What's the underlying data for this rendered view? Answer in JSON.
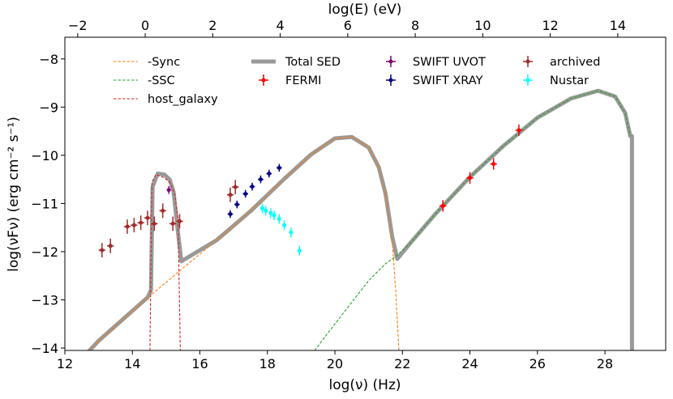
{
  "chart_data": {
    "type": "scatter",
    "title": "",
    "xlabel": "log(ν)  (Hz)",
    "ylabel": "log(νFν)  (erg cm⁻²  s⁻¹)",
    "x2label": "log(E) (eV)",
    "xlim": [
      12,
      29.8
    ],
    "ylim": [
      -14.05,
      -7.55
    ],
    "x2_offset": -14.38,
    "xticks": [
      "12",
      "14",
      "16",
      "18",
      "20",
      "22",
      "24",
      "26",
      "28"
    ],
    "yticks": [
      "−14",
      "−13",
      "−12",
      "−11",
      "−10",
      "−9",
      "−8"
    ],
    "x2ticks": [
      "−2",
      "0",
      "2",
      "4",
      "6",
      "8",
      "10",
      "12",
      "14"
    ],
    "legend_position": "top",
    "series": [
      {
        "name": "-Sync",
        "kind": "dashed-line",
        "color": "#ff7f0e",
        "x": [
          12.0,
          13.0,
          14.5,
          15.4,
          16.5,
          17.5,
          18.5,
          19.3,
          20.0,
          20.5,
          21.0,
          21.3,
          21.5,
          21.7,
          21.8,
          21.9
        ],
        "y": [
          -14.6,
          -13.85,
          -12.93,
          -12.4,
          -11.76,
          -11.16,
          -10.49,
          -9.98,
          -9.65,
          -9.62,
          -9.84,
          -10.25,
          -10.8,
          -11.8,
          -12.8,
          -14.1
        ]
      },
      {
        "name": "-SSC",
        "kind": "dashed-line",
        "color": "#2ca02c",
        "x": [
          19.4,
          20.0,
          20.5,
          21.0,
          21.5,
          21.8,
          22.2,
          23.0,
          24.0,
          25.0,
          26.0,
          27.0,
          27.8,
          28.3,
          28.6,
          28.75
        ],
        "y": [
          -14.05,
          -13.5,
          -13.05,
          -12.6,
          -12.25,
          -12.1,
          -11.85,
          -11.2,
          -10.45,
          -9.8,
          -9.22,
          -8.82,
          -8.66,
          -8.78,
          -9.12,
          -9.6
        ]
      },
      {
        "name": "host_galaxy",
        "kind": "dashed-line",
        "color": "#d62728",
        "x": [
          14.52,
          14.58,
          14.7,
          14.9,
          15.1,
          15.25,
          15.35,
          15.42
        ],
        "y": [
          -14.05,
          -10.55,
          -10.4,
          -10.45,
          -10.55,
          -10.8,
          -11.3,
          -14.05
        ]
      },
      {
        "name": "Total SED",
        "kind": "line",
        "color": "#999999",
        "x": [
          12.0,
          13.0,
          14.45,
          14.55,
          14.6,
          14.75,
          14.95,
          15.1,
          15.22,
          15.35,
          15.45,
          16.5,
          17.5,
          18.5,
          19.3,
          20.0,
          20.5,
          21.0,
          21.3,
          21.5,
          21.7,
          21.85,
          22.2,
          23.0,
          24.0,
          25.0,
          26.0,
          27.0,
          27.8,
          28.3,
          28.6,
          28.75,
          28.8,
          28.8
        ],
        "y": [
          -14.6,
          -13.85,
          -12.95,
          -12.8,
          -10.65,
          -10.38,
          -10.4,
          -10.5,
          -10.75,
          -11.6,
          -12.2,
          -11.76,
          -11.16,
          -10.49,
          -9.98,
          -9.65,
          -9.62,
          -9.84,
          -10.25,
          -10.8,
          -11.7,
          -12.15,
          -11.85,
          -11.2,
          -10.45,
          -9.8,
          -9.22,
          -8.82,
          -8.66,
          -8.78,
          -9.12,
          -9.6,
          -9.6,
          -14.05
        ]
      },
      {
        "name": "FERMI",
        "kind": "errorbar",
        "color": "#ff0000",
        "x": [
          23.2,
          24.0,
          24.7,
          25.45
        ],
        "y": [
          -11.05,
          -10.47,
          -10.18,
          -9.48
        ],
        "xerr": 0.1,
        "yerr": 0.12
      },
      {
        "name": "SWIFT UVOT",
        "kind": "errorbar",
        "color": "#800080",
        "x": [
          15.08
        ],
        "y": [
          -10.72
        ],
        "xerr": 0.03,
        "yerr": 0.08
      },
      {
        "name": "SWIFT XRAY",
        "kind": "errorbar",
        "color": "#00008b",
        "x": [
          16.9,
          17.1,
          17.35,
          17.55,
          17.8,
          18.05,
          18.35
        ],
        "y": [
          -11.22,
          -11.02,
          -10.8,
          -10.65,
          -10.5,
          -10.38,
          -10.26
        ],
        "xerr": 0.08,
        "yerr": 0.08
      },
      {
        "name": "Nustar",
        "kind": "errorbar",
        "color": "#00ffff",
        "x": [
          17.85,
          17.95,
          18.1,
          18.2,
          18.35,
          18.5,
          18.7,
          18.95
        ],
        "y": [
          -11.1,
          -11.15,
          -11.2,
          -11.25,
          -11.32,
          -11.45,
          -11.6,
          -11.98
        ],
        "xerr": 0.04,
        "yerr": 0.1
      },
      {
        "name": "archived",
        "kind": "errorbar",
        "color": "#a52a2a",
        "x": [
          13.1,
          13.35,
          13.85,
          14.05,
          14.25,
          14.45,
          14.65,
          14.9,
          15.2,
          15.4,
          16.9,
          17.05
        ],
        "y": [
          -11.97,
          -11.88,
          -11.48,
          -11.45,
          -11.4,
          -11.3,
          -11.42,
          -11.15,
          -11.42,
          -11.37,
          -10.82,
          -10.66
        ],
        "xerr": 0.1,
        "yerr": 0.15
      }
    ],
    "legend": [
      {
        "name": "-Sync",
        "kind": "dashed-line",
        "color": "#ff7f0e"
      },
      {
        "name": "-SSC",
        "kind": "dashed-line",
        "color": "#2ca02c"
      },
      {
        "name": "host_galaxy",
        "kind": "dashed-line",
        "color": "#d62728"
      },
      {
        "name": "Total SED",
        "kind": "line",
        "color": "#999999"
      },
      {
        "name": "FERMI",
        "kind": "errorbar",
        "color": "#ff0000"
      },
      {
        "name": "SWIFT UVOT",
        "kind": "errorbar",
        "color": "#800080"
      },
      {
        "name": "SWIFT XRAY",
        "kind": "errorbar",
        "color": "#00008b"
      },
      {
        "name": "archived",
        "kind": "errorbar",
        "color": "#a52a2a"
      },
      {
        "name": "Nustar",
        "kind": "errorbar",
        "color": "#00ffff"
      }
    ]
  }
}
